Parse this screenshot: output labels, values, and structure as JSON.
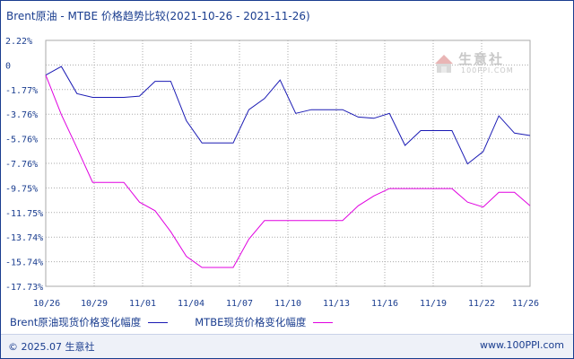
{
  "title": "Brent原油 - MTBE 价格趋势比较(2021-10-26 - 2021-11-26)",
  "watermark": {
    "text": "生意社",
    "url": "100PPI.COM"
  },
  "footer": {
    "copyright": "© 2025.07 生意社",
    "site": "www.100PPI.com"
  },
  "colors": {
    "brent": "#1a1ab4",
    "mtbe": "#e000e0",
    "grid": "#aaaaaa",
    "axis_text": "#1a3d8f"
  },
  "chart_data": {
    "type": "line",
    "x_labels": [
      "10/26",
      "10/29",
      "11/01",
      "11/04",
      "11/07",
      "11/10",
      "11/13",
      "11/16",
      "11/19",
      "11/22",
      "11/26"
    ],
    "y_ticks": [
      "2.22%",
      "0",
      "-1.77%",
      "-3.76%",
      "-5.76%",
      "-7.76%",
      "-9.75%",
      "-11.75%",
      "-13.74%",
      "-15.74%",
      "-17.73%"
    ],
    "ylim": [
      -17.73,
      2.22
    ],
    "grid": true,
    "series": [
      {
        "name": "Brent原油现货价格变化幅度",
        "x": [
          "2021-10-26",
          "2021-10-27",
          "2021-10-28",
          "2021-10-29",
          "2021-10-30",
          "2021-10-31",
          "2021-11-01",
          "2021-11-02",
          "2021-11-03",
          "2021-11-04",
          "2021-11-05",
          "2021-11-06",
          "2021-11-07",
          "2021-11-08",
          "2021-11-09",
          "2021-11-10",
          "2021-11-11",
          "2021-11-12",
          "2021-11-13",
          "2021-11-14",
          "2021-11-15",
          "2021-11-16",
          "2021-11-17",
          "2021-11-18",
          "2021-11-19",
          "2021-11-20",
          "2021-11-21",
          "2021-11-22",
          "2021-11-23",
          "2021-11-24",
          "2021-11-25",
          "2021-11-26"
        ],
        "values": [
          -0.6,
          0.1,
          -2.1,
          -2.4,
          -2.4,
          -2.4,
          -2.3,
          -1.1,
          -1.1,
          -4.3,
          -6.1,
          -6.1,
          -6.1,
          -3.4,
          -2.5,
          -1.0,
          -3.7,
          -3.4,
          -3.4,
          -3.4,
          -4.0,
          -4.1,
          -3.7,
          -6.3,
          -5.1,
          -5.1,
          -5.1,
          -7.8,
          -6.8,
          -3.9,
          -5.3,
          -5.5
        ]
      },
      {
        "name": "MTBE现货价格变化幅度",
        "x": [
          "2021-10-26",
          "2021-10-27",
          "2021-10-28",
          "2021-10-29",
          "2021-10-30",
          "2021-10-31",
          "2021-11-01",
          "2021-11-02",
          "2021-11-03",
          "2021-11-04",
          "2021-11-05",
          "2021-11-06",
          "2021-11-07",
          "2021-11-08",
          "2021-11-09",
          "2021-11-10",
          "2021-11-11",
          "2021-11-12",
          "2021-11-13",
          "2021-11-14",
          "2021-11-15",
          "2021-11-16",
          "2021-11-17",
          "2021-11-18",
          "2021-11-19",
          "2021-11-20",
          "2021-11-21",
          "2021-11-22",
          "2021-11-23",
          "2021-11-24",
          "2021-11-25",
          "2021-11-26"
        ],
        "values": [
          -0.6,
          -3.8,
          -6.5,
          -9.3,
          -9.3,
          -9.3,
          -10.9,
          -11.6,
          -13.3,
          -15.3,
          -16.2,
          -16.2,
          -16.2,
          -13.9,
          -12.4,
          -12.4,
          -12.4,
          -12.4,
          -12.4,
          -12.4,
          -11.2,
          -10.4,
          -9.8,
          -9.8,
          -9.8,
          -9.8,
          -9.8,
          -10.9,
          -11.3,
          -10.1,
          -10.1,
          -11.2
        ]
      }
    ]
  }
}
